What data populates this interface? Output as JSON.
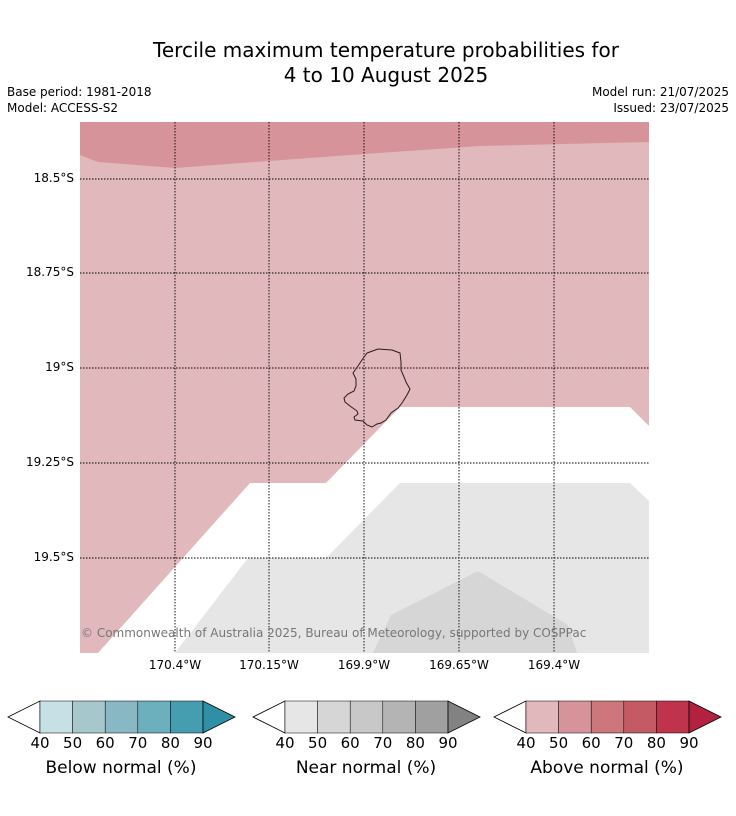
{
  "title_line1": "Tercile maximum temperature probabilities for",
  "title_line2": "4 to 10 August 2025",
  "base_period": "Base period: 1981-2018",
  "model": "Model: ACCESS-S2",
  "model_run": "Model run: 21/07/2025",
  "issued": "Issued: 23/07/2025",
  "credit": "© Commonwealth of Australia 2025, Bureau of Meteorology, supported by COSPPac",
  "lat_labels": [
    "18.5°S",
    "18.75°S",
    "19°S",
    "19.25°S",
    "19.5°S"
  ],
  "lon_labels": [
    "170.4°W",
    "170.15°W",
    "169.9°W",
    "169.65°W",
    "169.4°W"
  ],
  "legends": [
    {
      "title": "Below normal (%)",
      "ticks": [
        "40",
        "50",
        "60",
        "70",
        "80",
        "90"
      ],
      "colors": [
        "#c7e0e6",
        "#a6c8cc",
        "#88b8c4",
        "#6cafbd",
        "#459eaf",
        "#2f8fa4"
      ]
    },
    {
      "title": "Near normal (%)",
      "ticks": [
        "40",
        "50",
        "60",
        "70",
        "80",
        "90"
      ],
      "colors": [
        "#e6e6e6",
        "#d6d6d6",
        "#c8c8c8",
        "#b4b4b4",
        "#a0a0a0",
        "#828282"
      ]
    },
    {
      "title": "Above normal (%)",
      "ticks": [
        "40",
        "50",
        "60",
        "70",
        "80",
        "90"
      ],
      "colors": [
        "#e1b8bc",
        "#d6949a",
        "#cd767c",
        "#c35a64",
        "#bf344c",
        "#b2213f"
      ]
    }
  ],
  "map_colors": {
    "above_40_50": "#e1b8bc",
    "above_50_60": "#d6949a",
    "near_40_50": "#e6e6e6",
    "near_50_60": "#d6d6d6",
    "island_outline": "#2a1a1a"
  }
}
